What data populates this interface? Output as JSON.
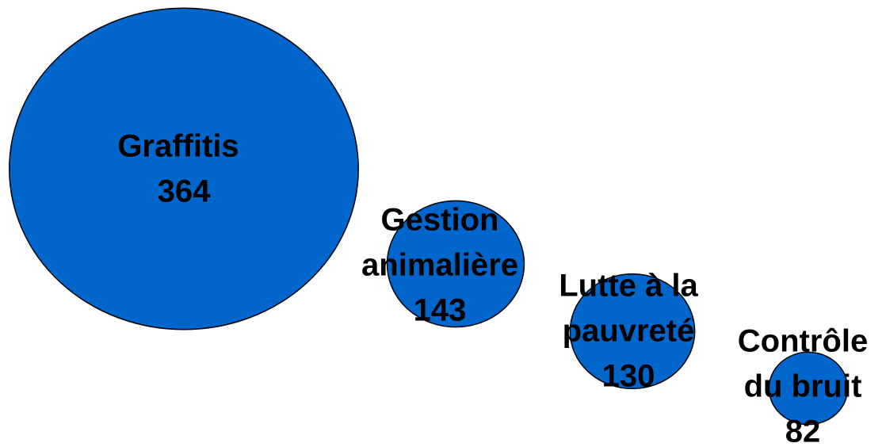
{
  "chart_data": {
    "type": "bubble",
    "categories": [
      [
        "Graffitis"
      ],
      [
        "Gestion",
        "animalière"
      ],
      [
        "Lutte à la",
        "pauvreté"
      ],
      [
        "Contrôle",
        "du bruit"
      ]
    ],
    "values": [
      364,
      143,
      130,
      82
    ],
    "color": "#0066cc"
  }
}
